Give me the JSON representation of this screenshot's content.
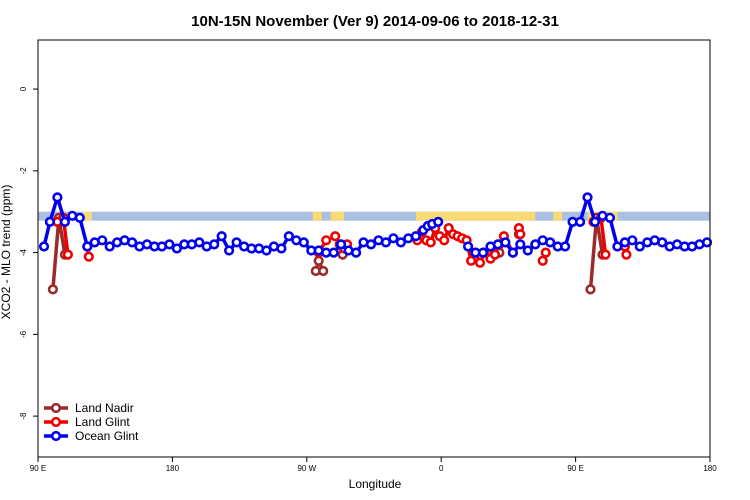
{
  "chart_data": {
    "type": "line",
    "title": "10N-15N November (Ver 9)   2014-09-06 to 2018-12-31",
    "xlabel": "Longitude",
    "ylabel": "XCO2 - MLO trend (ppm)",
    "xlim": [
      0,
      450
    ],
    "ylim": [
      -9,
      1.2
    ],
    "x_ticks": [
      {
        "value": 0,
        "label": "90 E"
      },
      {
        "value": 90,
        "label": "180"
      },
      {
        "value": 180,
        "label": "90 W"
      },
      {
        "value": 270,
        "label": "0"
      },
      {
        "value": 360,
        "label": "90 E"
      },
      {
        "value": 450,
        "label": "180"
      }
    ],
    "y_ticks": [
      0,
      -2,
      -4,
      -6,
      -8
    ],
    "band": {
      "y_top": -3.0,
      "y_bottom": -3.22,
      "color": "#a9c0e2",
      "land_color": "#f9da77"
    },
    "land_segments": [
      [
        30,
        36
      ],
      [
        184,
        190
      ],
      [
        196,
        205
      ],
      [
        253,
        333
      ],
      [
        345,
        351
      ],
      [
        368,
        376
      ],
      [
        380,
        388
      ]
    ],
    "colors": {
      "land_nadir": "#9c2a2a",
      "land_glint": "#ee0000",
      "ocean_glint": "#0000ee"
    },
    "series": [
      {
        "name": "Land Nadir",
        "color": "#9c2a2a",
        "segments": [
          [
            [
              10,
              -4.9
            ],
            [
              14,
              -3.15
            ],
            [
              18,
              -4.05
            ]
          ],
          [
            [
              186,
              -4.45
            ],
            [
              188,
              -4.2
            ],
            [
              191,
              -4.45
            ]
          ],
          [
            [
              204,
              -4.05
            ]
          ],
          [
            [
              306,
              -4.0
            ],
            [
              309,
              -4.0
            ]
          ],
          [
            [
              322,
              -3.55
            ]
          ],
          [
            [
              370,
              -4.9
            ],
            [
              374,
              -3.15
            ],
            [
              378,
              -4.05
            ]
          ]
        ]
      },
      {
        "name": "Land Glint",
        "color": "#ee0000",
        "segments": [
          [
            [
              13,
              -3.25
            ],
            [
              17,
              -3.15
            ],
            [
              20,
              -4.05
            ]
          ],
          [
            [
              33,
              -3.85
            ],
            [
              34,
              -4.1
            ]
          ],
          [
            [
              188,
              -4.0
            ],
            [
              193,
              -3.7
            ]
          ],
          [
            [
              199,
              -3.6
            ],
            [
              202,
              -3.8
            ],
            [
              205,
              -3.9
            ],
            [
              207,
              -3.8
            ]
          ],
          [
            [
              254,
              -3.7
            ],
            [
              257,
              -3.5
            ],
            [
              260,
              -3.7
            ],
            [
              263,
              -3.75
            ],
            [
              266,
              -3.4
            ],
            [
              269,
              -3.6
            ],
            [
              272,
              -3.7
            ],
            [
              275,
              -3.4
            ],
            [
              278,
              -3.55
            ],
            [
              281,
              -3.6
            ],
            [
              284,
              -3.65
            ],
            [
              287,
              -3.7
            ],
            [
              290,
              -4.2
            ],
            [
              293,
              -4.0
            ],
            [
              296,
              -4.25
            ],
            [
              299,
              -4.0
            ],
            [
              303,
              -4.15
            ],
            [
              306,
              -4.05
            ],
            [
              309,
              -3.8
            ],
            [
              312,
              -3.6
            ],
            [
              318,
              -4.0
            ]
          ],
          [
            [
              322,
              -3.4
            ],
            [
              323,
              -3.55
            ]
          ],
          [
            [
              338,
              -4.2
            ],
            [
              340,
              -4.0
            ]
          ],
          [
            [
              372,
              -3.25
            ],
            [
              377,
              -3.15
            ],
            [
              380,
              -4.05
            ]
          ],
          [
            [
              393,
              -3.85
            ],
            [
              394,
              -4.05
            ]
          ]
        ]
      },
      {
        "name": "Ocean Glint",
        "color": "#0000ee",
        "segments": [
          [
            [
              4,
              -3.85
            ],
            [
              8,
              -3.25
            ],
            [
              13,
              -2.65
            ],
            [
              18,
              -3.25
            ],
            [
              23,
              -3.1
            ],
            [
              28,
              -3.15
            ],
            [
              33,
              -3.85
            ],
            [
              38,
              -3.75
            ],
            [
              43,
              -3.7
            ],
            [
              48,
              -3.85
            ],
            [
              53,
              -3.75
            ],
            [
              58,
              -3.7
            ],
            [
              63,
              -3.75
            ],
            [
              68,
              -3.85
            ],
            [
              73,
              -3.8
            ],
            [
              78,
              -3.85
            ],
            [
              83,
              -3.85
            ],
            [
              88,
              -3.8
            ],
            [
              93,
              -3.9
            ],
            [
              98,
              -3.8
            ],
            [
              103,
              -3.8
            ],
            [
              108,
              -3.75
            ],
            [
              113,
              -3.85
            ],
            [
              118,
              -3.8
            ],
            [
              123,
              -3.6
            ],
            [
              128,
              -3.95
            ],
            [
              133,
              -3.75
            ],
            [
              138,
              -3.85
            ],
            [
              143,
              -3.9
            ],
            [
              148,
              -3.9
            ],
            [
              153,
              -3.95
            ],
            [
              158,
              -3.85
            ],
            [
              163,
              -3.9
            ],
            [
              168,
              -3.6
            ],
            [
              173,
              -3.7
            ],
            [
              178,
              -3.75
            ],
            [
              183,
              -3.95
            ],
            [
              188,
              -3.95
            ],
            [
              193,
              -4.0
            ],
            [
              198,
              -4.0
            ],
            [
              203,
              -3.8
            ],
            [
              208,
              -3.95
            ],
            [
              213,
              -4.0
            ],
            [
              218,
              -3.75
            ],
            [
              223,
              -3.8
            ],
            [
              228,
              -3.7
            ],
            [
              233,
              -3.75
            ],
            [
              238,
              -3.65
            ],
            [
              243,
              -3.75
            ],
            [
              248,
              -3.65
            ],
            [
              253,
              -3.6
            ],
            [
              258,
              -3.45
            ],
            [
              261,
              -3.35
            ],
            [
              264,
              -3.3
            ],
            [
              268,
              -3.25
            ]
          ],
          [
            [
              288,
              -3.85
            ],
            [
              293,
              -4.0
            ],
            [
              298,
              -4.0
            ],
            [
              303,
              -3.85
            ],
            [
              308,
              -3.8
            ],
            [
              313,
              -3.75
            ],
            [
              318,
              -4.0
            ],
            [
              323,
              -3.8
            ],
            [
              328,
              -3.95
            ],
            [
              333,
              -3.8
            ],
            [
              338,
              -3.7
            ],
            [
              343,
              -3.75
            ],
            [
              348,
              -3.85
            ],
            [
              353,
              -3.85
            ],
            [
              358,
              -3.25
            ],
            [
              363,
              -3.25
            ],
            [
              368,
              -2.65
            ],
            [
              373,
              -3.25
            ],
            [
              378,
              -3.1
            ],
            [
              383,
              -3.15
            ],
            [
              388,
              -3.85
            ],
            [
              393,
              -3.75
            ],
            [
              398,
              -3.7
            ],
            [
              403,
              -3.85
            ],
            [
              408,
              -3.75
            ],
            [
              413,
              -3.7
            ],
            [
              418,
              -3.75
            ],
            [
              423,
              -3.85
            ],
            [
              428,
              -3.8
            ],
            [
              433,
              -3.85
            ],
            [
              438,
              -3.85
            ],
            [
              443,
              -3.8
            ],
            [
              448,
              -3.75
            ]
          ]
        ]
      }
    ],
    "legend": {
      "position": "bottom-left",
      "entries": [
        {
          "label": "Land Nadir",
          "color": "#9c2a2a"
        },
        {
          "label": "Land Glint",
          "color": "#ee0000"
        },
        {
          "label": "Ocean Glint",
          "color": "#0000ee"
        }
      ]
    }
  }
}
